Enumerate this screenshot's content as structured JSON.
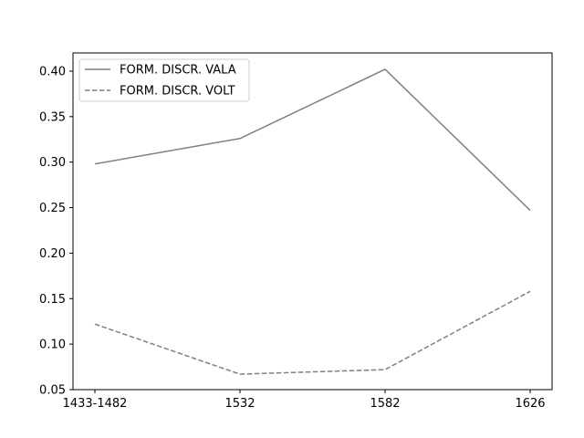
{
  "chart_data": {
    "type": "line",
    "title": "",
    "xlabel": "",
    "ylabel": "",
    "categories": [
      "1433-1482",
      "1532",
      "1582",
      "1626"
    ],
    "ylim": [
      0.05,
      0.42
    ],
    "yticks": [
      "0.05",
      "0.10",
      "0.15",
      "0.20",
      "0.25",
      "0.30",
      "0.35",
      "0.40"
    ],
    "grid": false,
    "legend_position": "upper-left",
    "series": [
      {
        "name": "FORM. DISCR. VALA",
        "values": [
          0.298,
          0.326,
          0.402,
          0.247
        ],
        "color": "#808080",
        "dash": "solid"
      },
      {
        "name": "FORM. DISCR. VOLT",
        "values": [
          0.122,
          0.067,
          0.072,
          0.158
        ],
        "color": "#808080",
        "dash": "dashed"
      }
    ]
  }
}
